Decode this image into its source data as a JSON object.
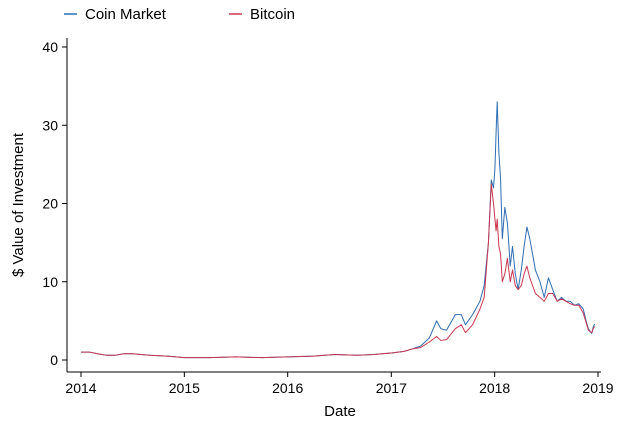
{
  "chart_data": {
    "type": "line",
    "title": "",
    "xlabel": "Date",
    "ylabel": "$ Value of Investment",
    "x_ticks": [
      "2014",
      "2015",
      "2016",
      "2017",
      "2018",
      "2019"
    ],
    "y_ticks": [
      "0",
      "10",
      "20",
      "30",
      "40"
    ],
    "xlim": [
      "2014-01-01",
      "2019-01-01"
    ],
    "ylim": [
      0,
      40
    ],
    "grid": false,
    "legend_position": "top-left",
    "series": [
      {
        "name": "Coin Market",
        "color": "#2f6db3",
        "x": [
          "2014-01-01",
          "2014-02-01",
          "2014-03-01",
          "2014-04-01",
          "2014-05-01",
          "2014-06-01",
          "2014-07-01",
          "2014-09-01",
          "2014-11-01",
          "2015-01-01",
          "2015-04-01",
          "2015-07-01",
          "2015-10-01",
          "2016-01-01",
          "2016-04-01",
          "2016-06-15",
          "2016-09-01",
          "2016-11-01",
          "2017-01-01",
          "2017-02-15",
          "2017-03-15",
          "2017-04-15",
          "2017-05-15",
          "2017-06-10",
          "2017-06-25",
          "2017-07-15",
          "2017-08-15",
          "2017-09-05",
          "2017-09-20",
          "2017-10-15",
          "2017-11-10",
          "2017-11-25",
          "2017-12-10",
          "2017-12-20",
          "2017-12-28",
          "2018-01-02",
          "2018-01-06",
          "2018-01-10",
          "2018-01-16",
          "2018-01-22",
          "2018-01-28",
          "2018-02-06",
          "2018-02-15",
          "2018-02-25",
          "2018-03-05",
          "2018-03-15",
          "2018-03-25",
          "2018-04-05",
          "2018-04-15",
          "2018-04-25",
          "2018-05-05",
          "2018-05-15",
          "2018-05-25",
          "2018-06-10",
          "2018-06-25",
          "2018-07-10",
          "2018-07-25",
          "2018-08-10",
          "2018-08-25",
          "2018-09-10",
          "2018-09-25",
          "2018-10-10",
          "2018-10-25",
          "2018-11-10",
          "2018-11-20",
          "2018-11-28",
          "2018-12-05",
          "2018-12-10",
          "2018-12-15",
          "2018-12-20"
        ],
        "y": [
          1.0,
          1.0,
          0.8,
          0.6,
          0.6,
          0.8,
          0.8,
          0.6,
          0.5,
          0.3,
          0.3,
          0.4,
          0.3,
          0.4,
          0.5,
          0.7,
          0.6,
          0.7,
          0.9,
          1.1,
          1.4,
          1.8,
          2.8,
          5.0,
          4.0,
          3.8,
          5.8,
          5.8,
          4.5,
          5.8,
          7.5,
          9.5,
          15.0,
          23.0,
          22.0,
          24.5,
          29.0,
          33.0,
          26.5,
          23.0,
          15.5,
          19.5,
          17.5,
          12.0,
          14.5,
          11.0,
          9.0,
          11.5,
          14.5,
          17.0,
          15.5,
          13.5,
          11.5,
          10.0,
          8.0,
          10.5,
          9.0,
          7.5,
          8.0,
          7.5,
          7.5,
          7.0,
          7.2,
          6.5,
          5.0,
          4.0,
          3.6,
          3.4,
          4.2,
          4.6
        ]
      },
      {
        "name": "Bitcoin",
        "color": "#c8374f",
        "x": [
          "2014-01-01",
          "2014-02-01",
          "2014-03-01",
          "2014-04-01",
          "2014-05-01",
          "2014-06-01",
          "2014-07-01",
          "2014-09-01",
          "2014-11-01",
          "2015-01-01",
          "2015-04-01",
          "2015-07-01",
          "2015-10-01",
          "2016-01-01",
          "2016-04-01",
          "2016-06-15",
          "2016-09-01",
          "2016-11-01",
          "2017-01-01",
          "2017-02-15",
          "2017-03-15",
          "2017-04-15",
          "2017-05-15",
          "2017-06-10",
          "2017-06-25",
          "2017-07-15",
          "2017-08-15",
          "2017-09-05",
          "2017-09-20",
          "2017-10-15",
          "2017-11-10",
          "2017-11-25",
          "2017-12-10",
          "2017-12-20",
          "2017-12-28",
          "2018-01-02",
          "2018-01-06",
          "2018-01-10",
          "2018-01-16",
          "2018-01-22",
          "2018-01-28",
          "2018-02-06",
          "2018-02-15",
          "2018-02-25",
          "2018-03-05",
          "2018-03-15",
          "2018-03-25",
          "2018-04-05",
          "2018-04-15",
          "2018-04-25",
          "2018-05-05",
          "2018-05-15",
          "2018-05-25",
          "2018-06-10",
          "2018-06-25",
          "2018-07-10",
          "2018-07-25",
          "2018-08-10",
          "2018-08-25",
          "2018-09-10",
          "2018-09-25",
          "2018-10-10",
          "2018-10-25",
          "2018-11-10",
          "2018-11-20",
          "2018-11-28",
          "2018-12-05",
          "2018-12-10",
          "2018-12-15",
          "2018-12-20"
        ],
        "y": [
          1.0,
          1.0,
          0.8,
          0.6,
          0.6,
          0.8,
          0.8,
          0.6,
          0.5,
          0.3,
          0.3,
          0.4,
          0.3,
          0.4,
          0.5,
          0.7,
          0.6,
          0.7,
          0.9,
          1.1,
          1.4,
          1.6,
          2.3,
          3.0,
          2.5,
          2.6,
          4.0,
          4.5,
          3.5,
          4.5,
          6.5,
          8.0,
          15.0,
          22.5,
          20.0,
          18.0,
          16.5,
          18.0,
          14.5,
          13.5,
          10.0,
          11.0,
          13.0,
          10.0,
          11.5,
          9.5,
          9.0,
          9.5,
          11.0,
          12.0,
          10.5,
          9.5,
          8.5,
          8.0,
          7.5,
          8.5,
          8.5,
          7.5,
          7.8,
          7.5,
          7.2,
          7.0,
          7.0,
          6.0,
          4.8,
          3.8,
          3.6,
          3.5,
          4.0,
          4.3
        ]
      }
    ]
  }
}
